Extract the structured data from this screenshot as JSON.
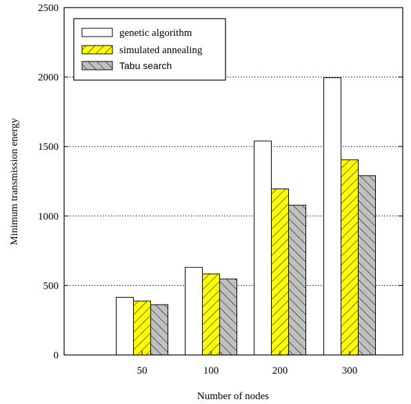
{
  "chart_data": {
    "type": "bar",
    "categories": [
      "50",
      "100",
      "200",
      "300"
    ],
    "series": [
      {
        "name": "genetic algorithm",
        "values": [
          415,
          630,
          1540,
          1995
        ],
        "fill": "#ffffff",
        "pattern": "none"
      },
      {
        "name": "simulated annealing",
        "values": [
          388,
          583,
          1195,
          1405
        ],
        "fill": "#ffff00",
        "pattern": "forward-hatch"
      },
      {
        "name": "Tabu search",
        "values": [
          362,
          547,
          1078,
          1290
        ],
        "fill": "#c0c0c0",
        "pattern": "back-hatch"
      }
    ],
    "xlabel": "Number of nodes",
    "ylabel": "Minimum transmission energy",
    "ylim": [
      0,
      2500
    ],
    "yticks": [
      "0",
      "500",
      "1000",
      "1500",
      "2000",
      "2500"
    ],
    "grid": "horizontal dotted",
    "legend_position": "top-left"
  }
}
